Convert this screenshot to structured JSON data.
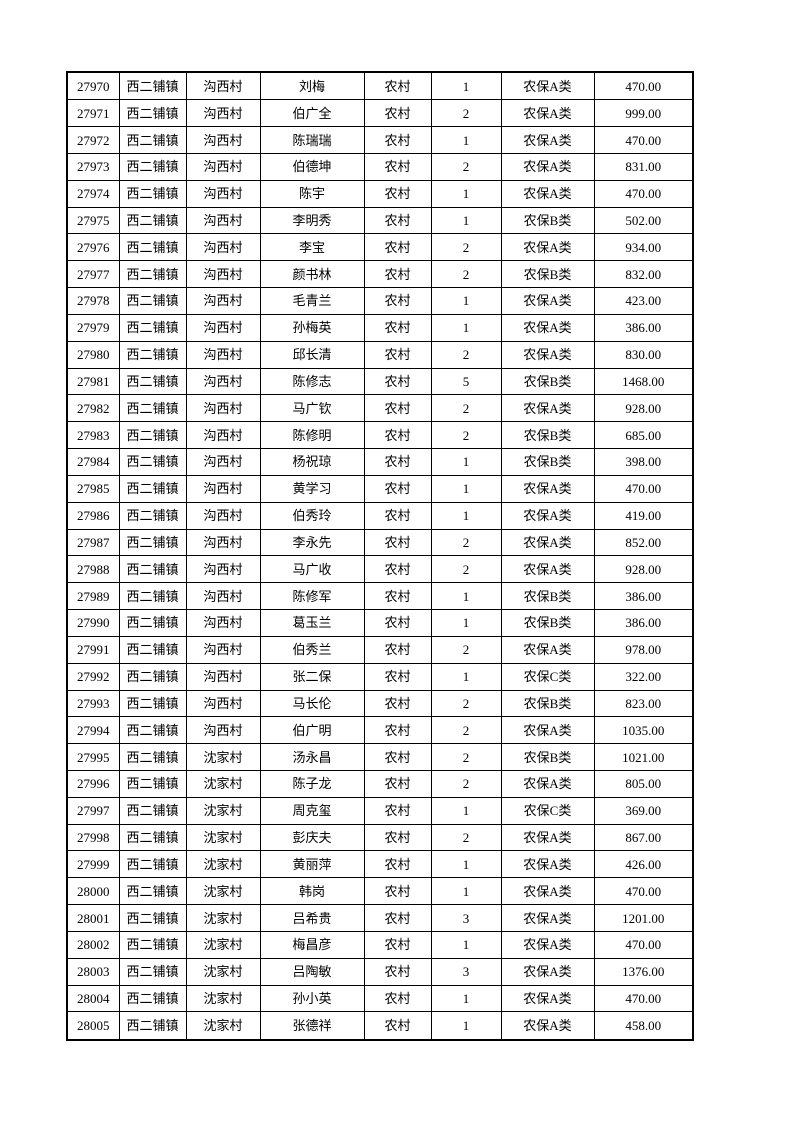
{
  "page": {
    "background_color": "#ffffff",
    "text_color": "#000000",
    "border_color": "#000000"
  },
  "table": {
    "columns": [
      "id",
      "town",
      "village",
      "name",
      "residence",
      "persons",
      "category",
      "amount"
    ],
    "rows": [
      [
        "27970",
        "西二铺镇",
        "沟西村",
        "刘梅",
        "农村",
        "1",
        "农保A类",
        "470.00"
      ],
      [
        "27971",
        "西二铺镇",
        "沟西村",
        "伯广全",
        "农村",
        "2",
        "农保A类",
        "999.00"
      ],
      [
        "27972",
        "西二铺镇",
        "沟西村",
        "陈瑞瑞",
        "农村",
        "1",
        "农保A类",
        "470.00"
      ],
      [
        "27973",
        "西二铺镇",
        "沟西村",
        "伯德坤",
        "农村",
        "2",
        "农保A类",
        "831.00"
      ],
      [
        "27974",
        "西二铺镇",
        "沟西村",
        "陈宇",
        "农村",
        "1",
        "农保A类",
        "470.00"
      ],
      [
        "27975",
        "西二铺镇",
        "沟西村",
        "李明秀",
        "农村",
        "1",
        "农保B类",
        "502.00"
      ],
      [
        "27976",
        "西二铺镇",
        "沟西村",
        "李宝",
        "农村",
        "2",
        "农保A类",
        "934.00"
      ],
      [
        "27977",
        "西二铺镇",
        "沟西村",
        "颜书林",
        "农村",
        "2",
        "农保B类",
        "832.00"
      ],
      [
        "27978",
        "西二铺镇",
        "沟西村",
        "毛青兰",
        "农村",
        "1",
        "农保A类",
        "423.00"
      ],
      [
        "27979",
        "西二铺镇",
        "沟西村",
        "孙梅英",
        "农村",
        "1",
        "农保A类",
        "386.00"
      ],
      [
        "27980",
        "西二铺镇",
        "沟西村",
        "邱长清",
        "农村",
        "2",
        "农保A类",
        "830.00"
      ],
      [
        "27981",
        "西二铺镇",
        "沟西村",
        "陈修志",
        "农村",
        "5",
        "农保B类",
        "1468.00"
      ],
      [
        "27982",
        "西二铺镇",
        "沟西村",
        "马广钦",
        "农村",
        "2",
        "农保A类",
        "928.00"
      ],
      [
        "27983",
        "西二铺镇",
        "沟西村",
        "陈修明",
        "农村",
        "2",
        "农保B类",
        "685.00"
      ],
      [
        "27984",
        "西二铺镇",
        "沟西村",
        "杨祝琼",
        "农村",
        "1",
        "农保B类",
        "398.00"
      ],
      [
        "27985",
        "西二铺镇",
        "沟西村",
        "黄学习",
        "农村",
        "1",
        "农保A类",
        "470.00"
      ],
      [
        "27986",
        "西二铺镇",
        "沟西村",
        "伯秀玲",
        "农村",
        "1",
        "农保A类",
        "419.00"
      ],
      [
        "27987",
        "西二铺镇",
        "沟西村",
        "李永先",
        "农村",
        "2",
        "农保A类",
        "852.00"
      ],
      [
        "27988",
        "西二铺镇",
        "沟西村",
        "马广收",
        "农村",
        "2",
        "农保A类",
        "928.00"
      ],
      [
        "27989",
        "西二铺镇",
        "沟西村",
        "陈修军",
        "农村",
        "1",
        "农保B类",
        "386.00"
      ],
      [
        "27990",
        "西二铺镇",
        "沟西村",
        "葛玉兰",
        "农村",
        "1",
        "农保B类",
        "386.00"
      ],
      [
        "27991",
        "西二铺镇",
        "沟西村",
        "伯秀兰",
        "农村",
        "2",
        "农保A类",
        "978.00"
      ],
      [
        "27992",
        "西二铺镇",
        "沟西村",
        "张二保",
        "农村",
        "1",
        "农保C类",
        "322.00"
      ],
      [
        "27993",
        "西二铺镇",
        "沟西村",
        "马长伦",
        "农村",
        "2",
        "农保B类",
        "823.00"
      ],
      [
        "27994",
        "西二铺镇",
        "沟西村",
        "伯广明",
        "农村",
        "2",
        "农保A类",
        "1035.00"
      ],
      [
        "27995",
        "西二铺镇",
        "沈家村",
        "汤永昌",
        "农村",
        "2",
        "农保B类",
        "1021.00"
      ],
      [
        "27996",
        "西二铺镇",
        "沈家村",
        "陈子龙",
        "农村",
        "2",
        "农保A类",
        "805.00"
      ],
      [
        "27997",
        "西二铺镇",
        "沈家村",
        "周克玺",
        "农村",
        "1",
        "农保C类",
        "369.00"
      ],
      [
        "27998",
        "西二铺镇",
        "沈家村",
        "彭庆夫",
        "农村",
        "2",
        "农保A类",
        "867.00"
      ],
      [
        "27999",
        "西二铺镇",
        "沈家村",
        "黄丽萍",
        "农村",
        "1",
        "农保A类",
        "426.00"
      ],
      [
        "28000",
        "西二铺镇",
        "沈家村",
        "韩岗",
        "农村",
        "1",
        "农保A类",
        "470.00"
      ],
      [
        "28001",
        "西二铺镇",
        "沈家村",
        "吕希贵",
        "农村",
        "3",
        "农保A类",
        "1201.00"
      ],
      [
        "28002",
        "西二铺镇",
        "沈家村",
        "梅昌彦",
        "农村",
        "1",
        "农保A类",
        "470.00"
      ],
      [
        "28003",
        "西二铺镇",
        "沈家村",
        "吕陶敏",
        "农村",
        "3",
        "农保A类",
        "1376.00"
      ],
      [
        "28004",
        "西二铺镇",
        "沈家村",
        "孙小英",
        "农村",
        "1",
        "农保A类",
        "470.00"
      ],
      [
        "28005",
        "西二铺镇",
        "沈家村",
        "张德祥",
        "农村",
        "1",
        "农保A类",
        "458.00"
      ]
    ]
  }
}
